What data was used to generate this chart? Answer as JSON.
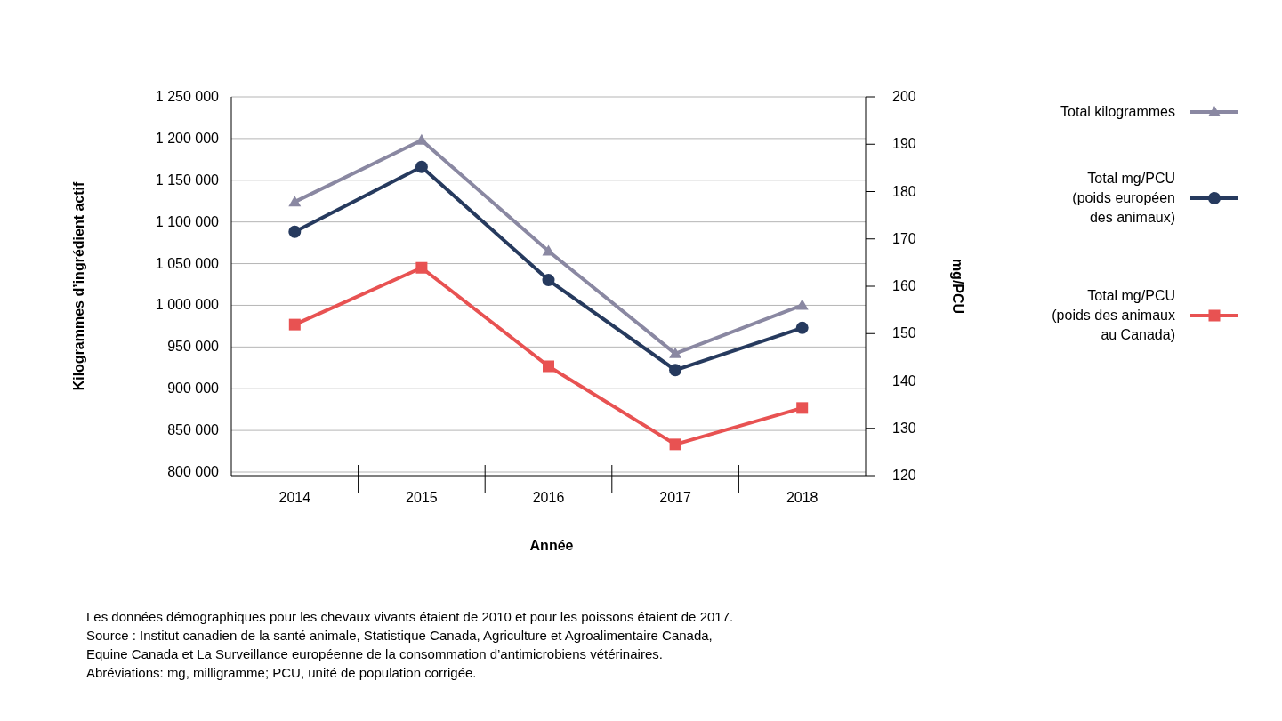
{
  "chart_data": {
    "type": "line",
    "xlabel": "Année",
    "ylabel": "Kilogrammes d’ingrédient actif",
    "y2label": "mg/PCU",
    "categories": [
      "2014",
      "2015",
      "2016",
      "2017",
      "2018"
    ],
    "series": [
      {
        "name": "Total kilogrammes",
        "color": "#8a88a2",
        "marker": "triangle",
        "values": [
          1124000,
          1198000,
          1065000,
          942000,
          1000000
        ]
      },
      {
        "name": "Total mg/PCU (poids européen des animaux)",
        "color": "#263a5e",
        "marker": "circle",
        "axis": "y2",
        "values": [
          171.5,
          185.2,
          161.3,
          142.3,
          151.2
        ]
      },
      {
        "name": "Total mg/PCU (poids des animaux au Canada)",
        "color": "#e85252",
        "marker": "square",
        "axis": "y2",
        "values": [
          151.9,
          163.9,
          143.1,
          126.6,
          134.3
        ]
      }
    ],
    "ylim": [
      800000,
      1250000
    ],
    "yticks": [
      {
        "value": 800000,
        "label": "800 000"
      },
      {
        "value": 850000,
        "label": "850 000"
      },
      {
        "value": 900000,
        "label": "900 000"
      },
      {
        "value": 950000,
        "label": "950 000"
      },
      {
        "value": 1000000,
        "label": "1 000 000"
      },
      {
        "value": 1050000,
        "label": "1 050 000"
      },
      {
        "value": 1100000,
        "label": "1 100 000"
      },
      {
        "value": 1150000,
        "label": "1 150 000"
      },
      {
        "value": 1200000,
        "label": "1 200 000"
      },
      {
        "value": 1250000,
        "label": "1 250 000"
      }
    ],
    "y2lim": [
      120,
      200
    ],
    "y2ticks": [
      120,
      130,
      140,
      150,
      160,
      170,
      180,
      190,
      200
    ],
    "grid": "y",
    "legend": "right",
    "line_style": "solid",
    "annotations": [
      "Les données démographiques pour les chevaux vivants étaient de 2010 et pour les poissons étaient de 2017.",
      "Source : Institut canadien de la santé animale, Statistique Canada, Agriculture et Agroalimentaire Canada, Equine Canada et La Surveillance européenne de la consommation d’antimicrobiens vétérinaires.",
      "Abréviations: mg, milligramme; PCU, unité de population corrigée."
    ]
  }
}
